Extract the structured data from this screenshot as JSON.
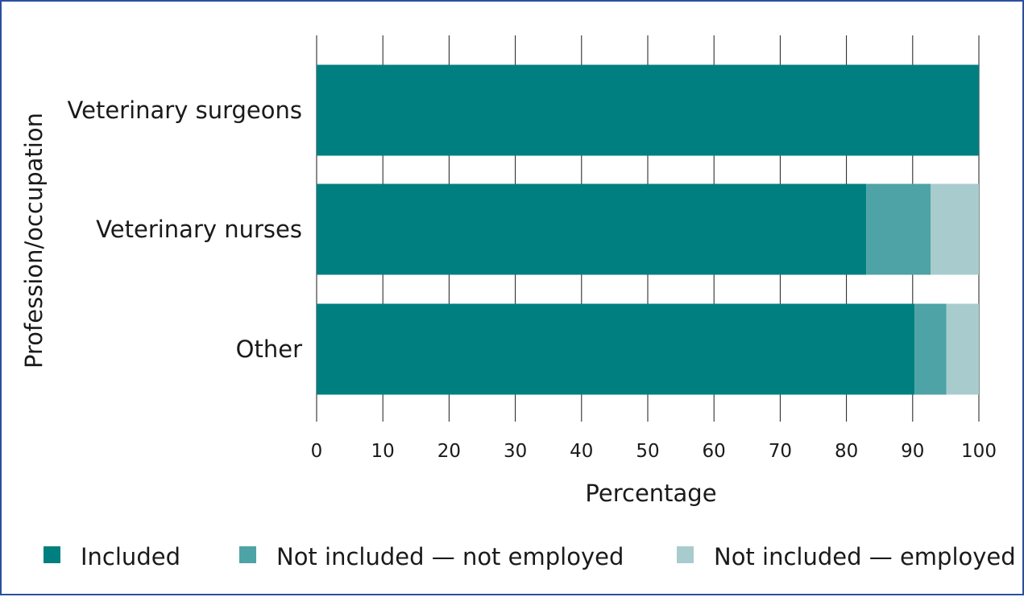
{
  "chart_data": {
    "type": "bar",
    "orientation": "horizontal",
    "stacked": true,
    "categories": [
      "Veterinary surgeons",
      "Veterinary nurses",
      "Other"
    ],
    "series": [
      {
        "name": "Included",
        "values": [
          100,
          83,
          90.3
        ],
        "color": "#007f80"
      },
      {
        "name": "Not included — not employed",
        "values": [
          0,
          9.7,
          4.8
        ],
        "color": "#4da3a6"
      },
      {
        "name": "Not included — employed",
        "values": [
          0,
          7.3,
          4.9
        ],
        "color": "#a8cccd"
      }
    ],
    "xlabel": "Percentage",
    "ylabel": "Profession/occupation",
    "xlim": [
      0,
      100
    ],
    "xticks": [
      "0",
      "10",
      "20",
      "30",
      "40",
      "50",
      "60",
      "70",
      "80",
      "90",
      "100"
    ],
    "grid": "vertical",
    "legend": "bottom"
  }
}
